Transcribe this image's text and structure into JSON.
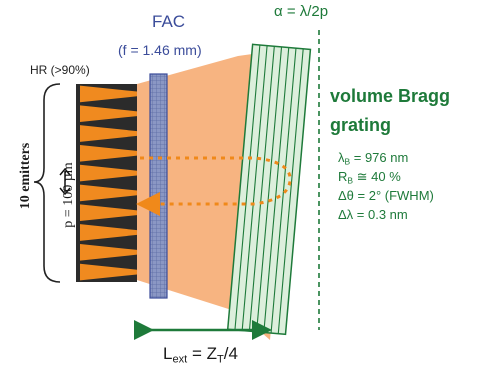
{
  "fac": {
    "title": "FAC",
    "focal": "(f = 1.46 mm)"
  },
  "alpha_label": "α = λ/2p",
  "hr_label": "HR (>90%)",
  "vbg": {
    "title": "volume Bragg grating",
    "lambda_b": {
      "sym": "λ",
      "sub": "B",
      "val": " = 976 nm"
    },
    "r_b": {
      "sym": "R",
      "sub": "B",
      "val": " ≅ 40 %"
    },
    "dtheta": "Δθ = 2° (FWHM)",
    "dlambda": "Δλ = 0.3 nm"
  },
  "emitters_label": "10 emitters",
  "pitch_label": "p = 100 µm",
  "lext": {
    "main": "L",
    "sub1": "ext",
    "eq": " = Z",
    "sub2": "T",
    "tail": "/4"
  },
  "colors": {
    "beam": "#f7b07a",
    "emitter": "#f08a1f",
    "fac": "#7a8ab8",
    "grating_fill": "#dcefdc",
    "green": "#1e7a3a",
    "feedback": "#f0891a"
  }
}
